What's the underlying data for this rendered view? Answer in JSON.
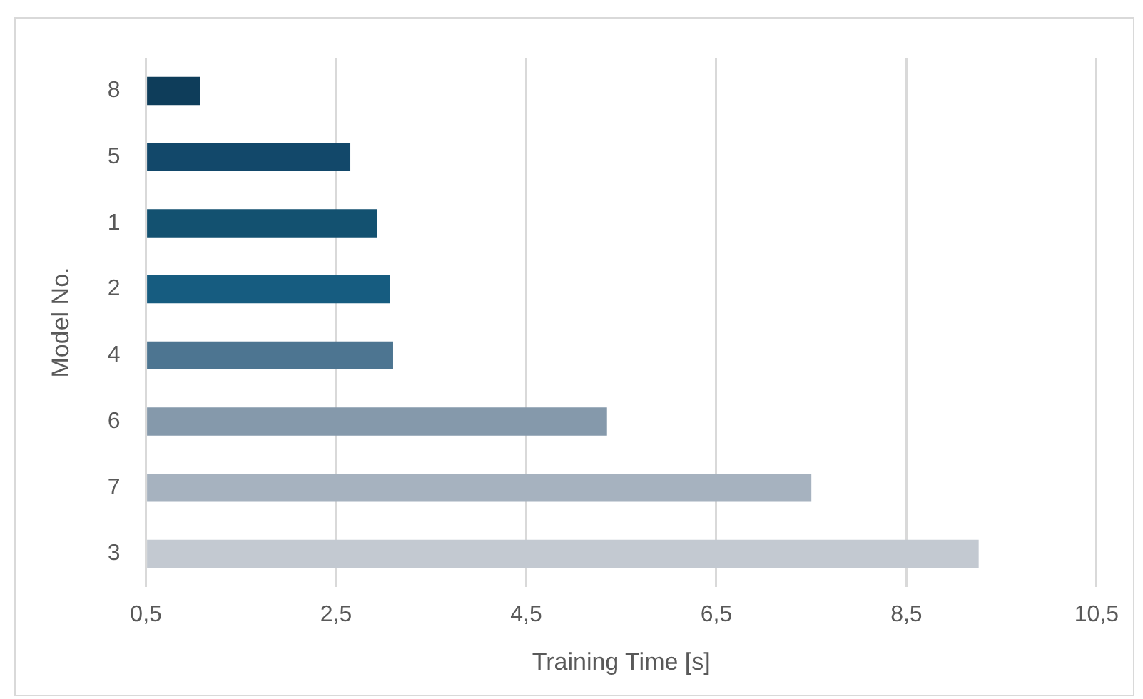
{
  "chart_data": {
    "type": "bar",
    "orientation": "horizontal",
    "xlabel": "Training Time [s]",
    "ylabel": "Model No.",
    "categories": [
      "8",
      "5",
      "1",
      "2",
      "4",
      "6",
      "7",
      "3"
    ],
    "values": [
      1.07,
      2.65,
      2.93,
      3.07,
      3.1,
      5.35,
      7.5,
      9.26
    ],
    "colors": [
      "#0e3d5a",
      "#12486a",
      "#135170",
      "#165c80",
      "#4d7591",
      "#8599ab",
      "#a6b2bf",
      "#c3c9d1"
    ],
    "xlim": [
      0.5,
      10.5
    ],
    "xticks": [
      {
        "value": 0.5,
        "label": "0,5"
      },
      {
        "value": 2.5,
        "label": "2,5"
      },
      {
        "value": 4.5,
        "label": "4,5"
      },
      {
        "value": 6.5,
        "label": "6,5"
      },
      {
        "value": 8.5,
        "label": "8,5"
      },
      {
        "value": 10.5,
        "label": "10,5"
      }
    ],
    "grid": "x",
    "legend": false
  }
}
